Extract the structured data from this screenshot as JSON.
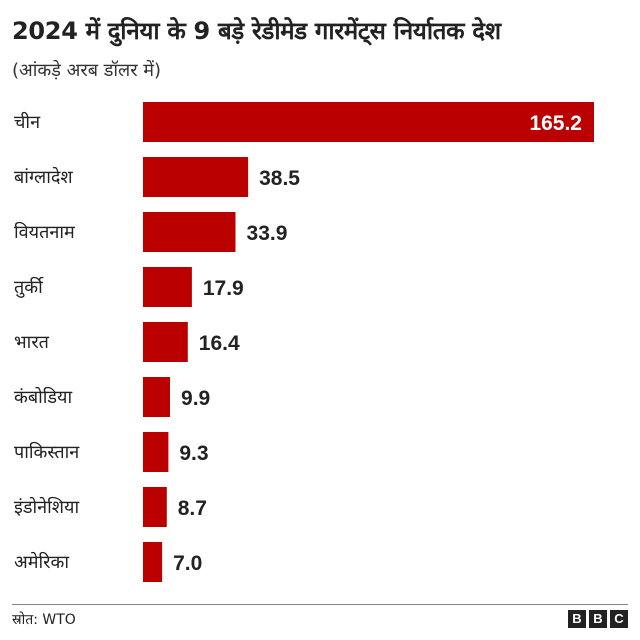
{
  "title": "2024 में दुनिया के 9 बड़े रेडीमेड गारमेंट्स निर्यातक देश",
  "subtitle": "(आंकड़े अरब डॉलर में)",
  "source": "स्रोत: WTO",
  "logo": [
    "B",
    "B",
    "C"
  ],
  "colors": {
    "bar": "#bb0000",
    "text": "#222222"
  },
  "chart_data": {
    "type": "bar",
    "orientation": "horizontal",
    "title": "2024 में दुनिया के 9 बड़े रेडीमेड गारमेंट्स निर्यातक देश",
    "subtitle": "(आंकड़े अरब डॉलर में)",
    "categories": [
      "चीन",
      "बांग्लादेश",
      "वियतनाम",
      "तुर्की",
      "भारत",
      "कंबोडिया",
      "पाकिस्तान",
      "इंडोनेशिया",
      "अमेरिका"
    ],
    "values": [
      165.2,
      38.5,
      33.9,
      17.9,
      16.4,
      9.9,
      9.3,
      8.7,
      7.0
    ],
    "value_labels": [
      "165.2",
      "38.5",
      "33.9",
      "17.9",
      "16.4",
      "9.9",
      "9.3",
      "8.7",
      "7.0"
    ],
    "xlim": [
      0,
      165.2
    ],
    "grid": false,
    "legend": "none"
  }
}
